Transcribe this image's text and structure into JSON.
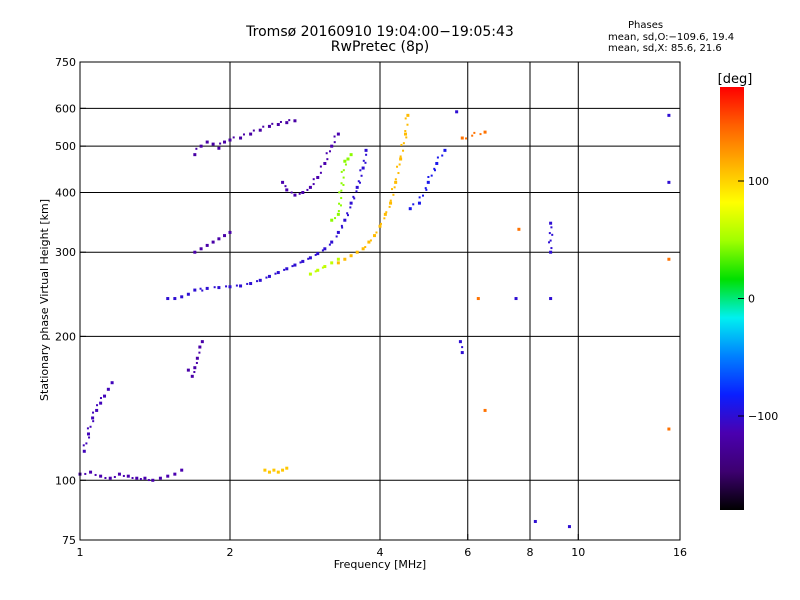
{
  "header": {
    "title": "Tromsø 20160910 19:04:00−19:05:43",
    "subtitle": "RwPretec (8p)"
  },
  "stats": {
    "heading": "Phases",
    "line_o": "mean, sd,O:−109.6, 19.4",
    "line_x": "mean, sd,X:  85.6, 21.6"
  },
  "colorbar": {
    "label": "[deg]",
    "ticks": [
      "100",
      "0",
      "−100"
    ],
    "tick_values": [
      100,
      0,
      -100
    ],
    "range": [
      -180,
      180
    ],
    "colors": [
      "#000000",
      "#3d0070",
      "#4a00b0",
      "#0a1fff",
      "#0080ff",
      "#00f0f0",
      "#00e000",
      "#a0ff00",
      "#ffff00",
      "#ffb000",
      "#ff6000",
      "#ff0000"
    ]
  },
  "chart_data": {
    "type": "scatter",
    "title": "Tromsø 20160910 19:04:00−19:05:43",
    "subtitle": "RwPretec (8p)",
    "xlabel": "Frequency [MHz]",
    "ylabel": "Stationary phase Virtual Height [km]",
    "xscale": "log",
    "yscale": "log",
    "xlim": [
      1,
      16
    ],
    "ylim": [
      75,
      750
    ],
    "xticks": [
      1,
      2,
      4,
      6,
      8,
      10,
      16
    ],
    "xtick_labels": [
      "1",
      "2",
      "4",
      "6",
      "8",
      "10",
      "16"
    ],
    "yticks": [
      75,
      100,
      200,
      300,
      400,
      500,
      600,
      750
    ],
    "ytick_labels": [
      "75",
      "100",
      "200",
      "300",
      "400",
      "500",
      "600",
      "750"
    ],
    "grid": true,
    "color_scale": "phase (deg), −180 to 180",
    "traces": [
      {
        "phase": -115,
        "points": [
          [
            1.0,
            103
          ],
          [
            1.05,
            104
          ],
          [
            1.1,
            102
          ],
          [
            1.15,
            101
          ],
          [
            1.2,
            103
          ],
          [
            1.25,
            102
          ],
          [
            1.3,
            101
          ],
          [
            1.35,
            101
          ],
          [
            1.4,
            100
          ],
          [
            1.45,
            101
          ],
          [
            1.5,
            102
          ],
          [
            1.55,
            103
          ],
          [
            1.6,
            105
          ]
        ]
      },
      {
        "phase": -110,
        "points": [
          [
            1.02,
            115
          ],
          [
            1.04,
            125
          ],
          [
            1.06,
            135
          ],
          [
            1.08,
            140
          ],
          [
            1.1,
            145
          ],
          [
            1.12,
            150
          ],
          [
            1.14,
            155
          ],
          [
            1.16,
            160
          ]
        ]
      },
      {
        "phase": -118,
        "points": [
          [
            1.65,
            170
          ],
          [
            1.68,
            165
          ],
          [
            1.7,
            172
          ],
          [
            1.72,
            180
          ],
          [
            1.74,
            190
          ],
          [
            1.76,
            195
          ]
        ]
      },
      {
        "phase": 105,
        "points": [
          [
            2.35,
            105
          ],
          [
            2.4,
            104
          ],
          [
            2.45,
            105
          ],
          [
            2.5,
            104
          ],
          [
            2.55,
            105
          ],
          [
            2.6,
            106
          ]
        ]
      },
      {
        "phase": -100,
        "points": [
          [
            1.5,
            240
          ],
          [
            1.55,
            240
          ],
          [
            1.6,
            242
          ],
          [
            1.65,
            245
          ],
          [
            1.7,
            250
          ],
          [
            1.8,
            252
          ],
          [
            1.9,
            253
          ],
          [
            2.0,
            254
          ],
          [
            2.1,
            255
          ],
          [
            2.2,
            258
          ],
          [
            2.3,
            262
          ],
          [
            2.4,
            267
          ],
          [
            2.5,
            272
          ],
          [
            2.6,
            277
          ],
          [
            2.7,
            282
          ],
          [
            2.8,
            287
          ],
          [
            2.9,
            292
          ],
          [
            3.0,
            298
          ],
          [
            3.1,
            305
          ],
          [
            3.2,
            315
          ],
          [
            3.3,
            330
          ],
          [
            3.4,
            350
          ],
          [
            3.5,
            380
          ],
          [
            3.6,
            410
          ],
          [
            3.7,
            450
          ],
          [
            3.75,
            490
          ]
        ]
      },
      {
        "phase": -118,
        "points": [
          [
            1.7,
            300
          ],
          [
            1.75,
            305
          ],
          [
            1.8,
            310
          ],
          [
            1.85,
            315
          ],
          [
            1.9,
            320
          ],
          [
            1.95,
            325
          ],
          [
            2.0,
            330
          ]
        ]
      },
      {
        "phase": -120,
        "points": [
          [
            1.7,
            480
          ],
          [
            1.75,
            500
          ],
          [
            1.8,
            510
          ],
          [
            1.85,
            505
          ],
          [
            1.9,
            495
          ],
          [
            1.95,
            510
          ],
          [
            2.0,
            515
          ],
          [
            2.1,
            520
          ],
          [
            2.2,
            530
          ],
          [
            2.3,
            540
          ],
          [
            2.4,
            550
          ],
          [
            2.5,
            555
          ],
          [
            2.6,
            560
          ],
          [
            2.7,
            565
          ]
        ]
      },
      {
        "phase": -115,
        "points": [
          [
            2.55,
            420
          ],
          [
            2.6,
            405
          ],
          [
            2.7,
            395
          ],
          [
            2.8,
            400
          ],
          [
            2.9,
            410
          ],
          [
            3.0,
            430
          ],
          [
            3.1,
            460
          ],
          [
            3.2,
            500
          ],
          [
            3.3,
            530
          ]
        ]
      },
      {
        "phase": 110,
        "points": [
          [
            3.3,
            285
          ],
          [
            3.4,
            290
          ],
          [
            3.5,
            295
          ],
          [
            3.6,
            300
          ],
          [
            3.7,
            305
          ],
          [
            3.8,
            315
          ],
          [
            3.9,
            325
          ],
          [
            4.0,
            340
          ],
          [
            4.1,
            360
          ],
          [
            4.2,
            380
          ],
          [
            4.3,
            420
          ],
          [
            4.4,
            470
          ],
          [
            4.5,
            530
          ],
          [
            4.55,
            580
          ]
        ]
      },
      {
        "phase": 60,
        "points": [
          [
            2.9,
            270
          ],
          [
            3.0,
            275
          ],
          [
            3.1,
            280
          ],
          [
            3.2,
            285
          ],
          [
            3.3,
            290
          ]
        ]
      },
      {
        "phase": 45,
        "points": [
          [
            3.2,
            350
          ],
          [
            3.3,
            360
          ],
          [
            3.4,
            465
          ],
          [
            3.45,
            470
          ],
          [
            3.5,
            480
          ]
        ]
      },
      {
        "phase": -90,
        "points": [
          [
            4.6,
            370
          ],
          [
            4.8,
            380
          ],
          [
            5.0,
            420
          ],
          [
            5.2,
            460
          ],
          [
            5.4,
            490
          ]
        ]
      },
      {
        "phase": -100,
        "points": [
          [
            5.7,
            590
          ],
          [
            5.8,
            195
          ],
          [
            5.85,
            185
          ],
          [
            8.2,
            82
          ],
          [
            8.8,
            300
          ],
          [
            8.8,
            345
          ],
          [
            8.8,
            240
          ],
          [
            9.6,
            80
          ],
          [
            7.5,
            240
          ],
          [
            15.2,
            580
          ],
          [
            15.2,
            420
          ]
        ]
      },
      {
        "phase": 140,
        "points": [
          [
            5.85,
            520
          ],
          [
            6.5,
            535
          ],
          [
            6.5,
            140
          ],
          [
            7.6,
            335
          ],
          [
            15.2,
            128
          ],
          [
            15.2,
            290
          ],
          [
            6.3,
            240
          ]
        ]
      }
    ]
  }
}
